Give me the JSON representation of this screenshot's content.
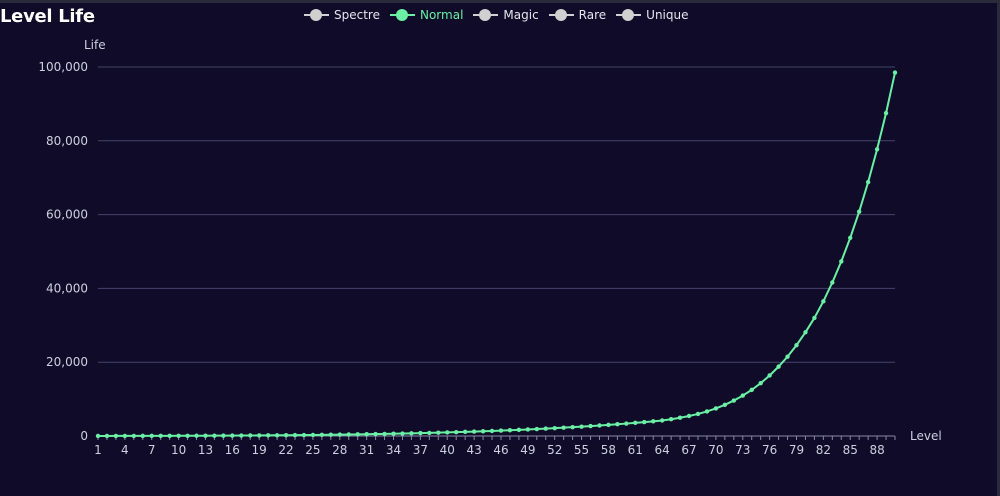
{
  "title": "Level Life",
  "legend": [
    {
      "name": "Spectre",
      "color": "#d0d0d0",
      "active": false
    },
    {
      "name": "Normal",
      "color": "#6af0a4",
      "active": true
    },
    {
      "name": "Magic",
      "color": "#d0d0d0",
      "active": false
    },
    {
      "name": "Rare",
      "color": "#d0d0d0",
      "active": false
    },
    {
      "name": "Unique",
      "color": "#d0d0d0",
      "active": false
    }
  ],
  "colors": {
    "background": "#0f0b28",
    "axis_text": "#cfcfe0",
    "grid": "#46446a",
    "series": "#6af0a4"
  },
  "chart_data": {
    "type": "line",
    "title": "Level Life",
    "xlabel": "Level",
    "ylabel": "Life",
    "ylim": [
      0,
      100000
    ],
    "y_ticks": [
      "0",
      "20,000",
      "40,000",
      "60,000",
      "80,000",
      "100,000"
    ],
    "x_tick_labels": [
      "1",
      "4",
      "7",
      "10",
      "13",
      "16",
      "19",
      "22",
      "25",
      "28",
      "31",
      "34",
      "37",
      "40",
      "43",
      "46",
      "49",
      "52",
      "55",
      "58",
      "61",
      "64",
      "67",
      "70",
      "73",
      "76",
      "79",
      "82",
      "85",
      "88"
    ],
    "grid": true,
    "legend_position": "top",
    "series": [
      {
        "name": "Normal",
        "x": [
          1,
          2,
          3,
          4,
          5,
          6,
          7,
          8,
          9,
          10,
          11,
          12,
          13,
          14,
          15,
          16,
          17,
          18,
          19,
          20,
          21,
          22,
          23,
          24,
          25,
          26,
          27,
          28,
          29,
          30,
          31,
          32,
          33,
          34,
          35,
          36,
          37,
          38,
          39,
          40,
          41,
          42,
          43,
          44,
          45,
          46,
          47,
          48,
          49,
          50,
          51,
          52,
          53,
          54,
          55,
          56,
          57,
          58,
          59,
          60,
          61,
          62,
          63,
          64,
          65,
          66,
          67,
          68,
          69,
          70,
          71,
          72,
          73,
          74,
          75,
          76,
          77,
          78,
          79,
          80,
          81,
          82,
          83,
          84,
          85,
          86,
          87,
          88,
          89,
          90
        ],
        "values": [
          15,
          17,
          20,
          23,
          27,
          31,
          36,
          41,
          47,
          54,
          61,
          69,
          78,
          88,
          99,
          111,
          124,
          139,
          155,
          172,
          191,
          212,
          234,
          258,
          284,
          312,
          342,
          374,
          408,
          445,
          485,
          527,
          572,
          620,
          671,
          725,
          782,
          843,
          907,
          975,
          1046,
          1121,
          1200,
          1284,
          1372,
          1464,
          1561,
          1663,
          1770,
          1883,
          2001,
          2125,
          2256,
          2393,
          2537,
          2688,
          2847,
          3013,
          3188,
          3372,
          3564,
          3766,
          3978,
          4200,
          4554,
          4950,
          5420,
          5977,
          6656,
          7474,
          8450,
          9600,
          10950,
          12500,
          14300,
          16400,
          18800,
          21500,
          24600,
          28100,
          32000,
          36500,
          41600,
          47300,
          53700,
          60800,
          68800,
          77700,
          87500,
          98500
        ]
      }
    ]
  }
}
